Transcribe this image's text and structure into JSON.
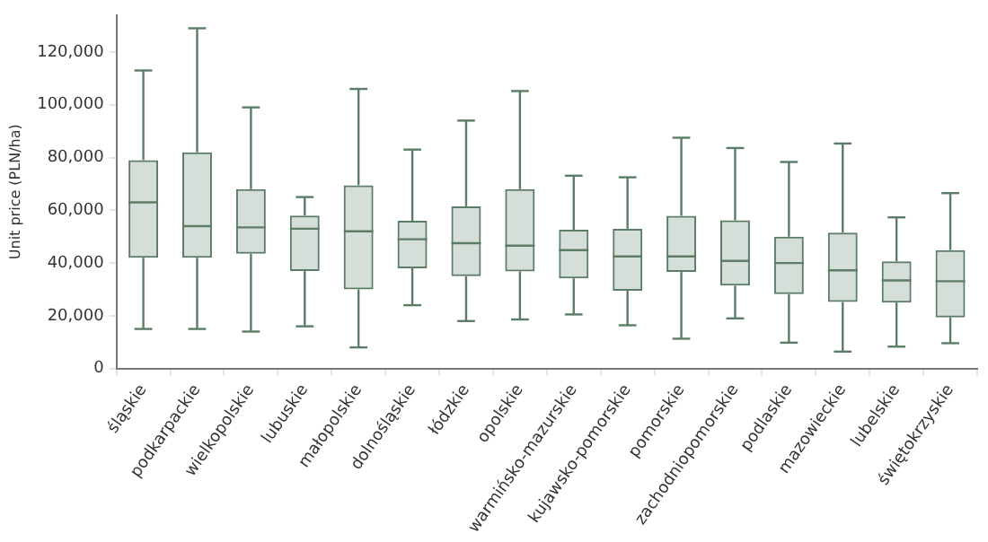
{
  "chart_data": {
    "type": "box",
    "ylabel": "Unit price (PLN/ha)",
    "color": "#5b7d66",
    "grid": false,
    "legend": false,
    "categories": [
      "śląskie",
      "podkarpackie",
      "wielkopolskie",
      "lubuskie",
      "małopolskie",
      "dolnośląskie",
      "łódzkie",
      "opolskie",
      "warmińsko-mazurskie",
      "kujawsko-pomorskie",
      "pomorskie",
      "zachodniopomorskie",
      "podlaskie",
      "mazowieckie",
      "lubelskie",
      "świętokrzyskie"
    ],
    "boxes": [
      {
        "low": 15000,
        "q1": 42000,
        "median": 63000,
        "q3": 79000,
        "high": 113000
      },
      {
        "low": 15000,
        "q1": 42000,
        "median": 54000,
        "q3": 82000,
        "high": 129000
      },
      {
        "low": 14000,
        "q1": 43500,
        "median": 53500,
        "q3": 68000,
        "high": 99000
      },
      {
        "low": 16000,
        "q1": 37000,
        "median": 53000,
        "q3": 58000,
        "high": 65000
      },
      {
        "low": 8000,
        "q1": 30000,
        "median": 52000,
        "q3": 69500,
        "high": 106000
      },
      {
        "low": 24000,
        "q1": 38000,
        "median": 49000,
        "q3": 56000,
        "high": 83000
      },
      {
        "low": 18000,
        "q1": 35000,
        "median": 47500,
        "q3": 61500,
        "high": 94000
      },
      {
        "low": 18600,
        "q1": 36800,
        "median": 46600,
        "q3": 68000,
        "high": 105200
      },
      {
        "low": 20500,
        "q1": 34200,
        "median": 44900,
        "q3": 52600,
        "high": 73100
      },
      {
        "low": 16400,
        "q1": 29500,
        "median": 42500,
        "q3": 53000,
        "high": 72500
      },
      {
        "low": 11300,
        "q1": 36600,
        "median": 42500,
        "q3": 57900,
        "high": 87500
      },
      {
        "low": 19000,
        "q1": 31400,
        "median": 40800,
        "q3": 56200,
        "high": 83600
      },
      {
        "low": 9800,
        "q1": 28200,
        "median": 40000,
        "q3": 50000,
        "high": 78300
      },
      {
        "low": 6400,
        "q1": 25200,
        "median": 37200,
        "q3": 51500,
        "high": 85300
      },
      {
        "low": 8300,
        "q1": 25000,
        "median": 33400,
        "q3": 40600,
        "high": 57300
      },
      {
        "low": 9600,
        "q1": 19400,
        "median": 33100,
        "q3": 44900,
        "high": 66500
      }
    ],
    "ylim": [
      0,
      134000
    ],
    "yticks": [
      {
        "value": 0,
        "label": "0"
      },
      {
        "value": 20000,
        "label": "20,000"
      },
      {
        "value": 40000,
        "label": "40,000"
      },
      {
        "value": 60000,
        "label": "60,000"
      },
      {
        "value": 80000,
        "label": "80,000"
      },
      {
        "value": 100000,
        "label": "100,000"
      },
      {
        "value": 120000,
        "label": "120,000"
      }
    ]
  }
}
